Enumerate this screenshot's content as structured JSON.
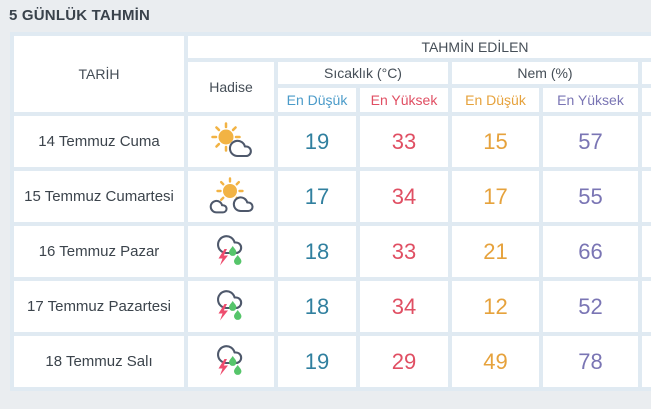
{
  "title": "5 GÜNLÜK TAHMİN",
  "table": {
    "headers": {
      "date": "TARİH",
      "event": "Hadise",
      "predicted": "TAHMİN EDİLEN",
      "temperature": "Sıcaklık (°C)",
      "humidity": "Nem (%)",
      "temp_min_label": "En Düşük",
      "temp_max_label": "En Yüksek",
      "hum_min_label": "En Düşük",
      "hum_max_label": "En Yüksek"
    },
    "rows": [
      {
        "date": "14 Temmuz Cuma",
        "icon": "sun-cloud",
        "temp_min": "19",
        "temp_max": "33",
        "hum_min": "15",
        "hum_max": "57"
      },
      {
        "date": "15 Temmuz Cumartesi",
        "icon": "sun-clouds",
        "temp_min": "17",
        "temp_max": "34",
        "hum_min": "17",
        "hum_max": "55"
      },
      {
        "date": "16 Temmuz Pazar",
        "icon": "storm",
        "temp_min": "18",
        "temp_max": "33",
        "hum_min": "21",
        "hum_max": "66"
      },
      {
        "date": "17 Temmuz Pazartesi",
        "icon": "storm",
        "temp_min": "18",
        "temp_max": "34",
        "hum_min": "12",
        "hum_max": "52"
      },
      {
        "date": "18 Temmuz Salı",
        "icon": "storm",
        "temp_min": "19",
        "temp_max": "29",
        "hum_min": "49",
        "hum_max": "78"
      }
    ]
  },
  "icons": {
    "sun-cloud": "partly-cloudy-icon",
    "sun-clouds": "mostly-cloudy-icon",
    "storm": "thunderstorm-icon"
  },
  "colors": {
    "page_bg": "#eaedf0",
    "table_bg": "#e0eaf2",
    "cell_bg": "#ffffff",
    "title_text": "#39424b",
    "header_text": "#454e57",
    "date_text": "#3c444c",
    "temp_min": "#31809f",
    "temp_min_header": "#4b9bc9",
    "temp_max": "#e04f63",
    "hum_min": "#e6a23c",
    "hum_max": "#7a75b4",
    "sun": "#f2b344",
    "cloud_outline": "#4e586b",
    "lightning": "#ee4d6e",
    "raindrop": "#56c56a"
  }
}
